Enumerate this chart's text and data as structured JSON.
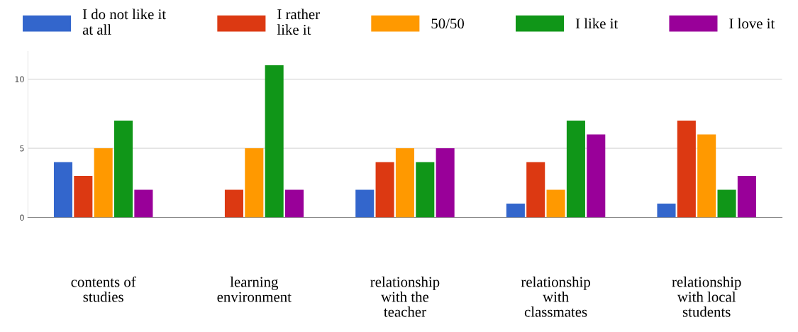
{
  "chart_data": {
    "type": "bar",
    "categories": [
      "contents of\nstudies",
      "learning\nenvironment",
      "relationship\nwith the\nteacher",
      "relationship\nwith\nclassmates",
      "relationship\nwith local\nstudents"
    ],
    "series": [
      {
        "name": "I do not like it\nat all",
        "color": "#3366cc",
        "values": [
          4,
          0,
          2,
          1,
          1
        ]
      },
      {
        "name": "I rather\nlike it",
        "color": "#dc3912",
        "values": [
          3,
          2,
          4,
          4,
          7
        ]
      },
      {
        "name": "50/50",
        "color": "#ff9900",
        "values": [
          5,
          5,
          5,
          2,
          6
        ]
      },
      {
        "name": "I like it",
        "color": "#109618",
        "values": [
          7,
          11,
          4,
          7,
          2
        ]
      },
      {
        "name": "I love it",
        "color": "#990099",
        "values": [
          2,
          2,
          5,
          6,
          3
        ]
      }
    ],
    "ylim": [
      0,
      12
    ],
    "yticks": [
      0,
      5,
      10
    ],
    "grid": "y",
    "legend": "top"
  }
}
